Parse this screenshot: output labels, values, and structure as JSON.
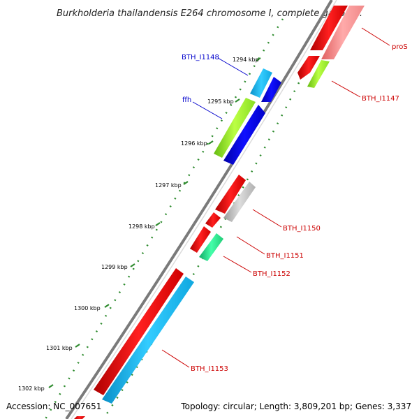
{
  "title": "Burkholderia thailandensis E264 chromosome I, complete genom...",
  "footer": {
    "accession": "Accession: NC_007651",
    "summary": "Topology: circular; Length: 3,809,201 bp; Genes: 3,337"
  },
  "ticks": [
    "1294 kbp",
    "1295 kbp",
    "1296 kbp",
    "1297 kbp",
    "1298 kbp",
    "1299 kbp",
    "1300 kbp",
    "1301 kbp",
    "1302 kbp"
  ],
  "genes": {
    "BTH_I1148": {
      "label": "BTH_I1148",
      "color": "#0000cc"
    },
    "ffh": {
      "label": "ffh",
      "color": "#0000cc"
    },
    "proS": {
      "label": "proS",
      "color": "#cc0000"
    },
    "BTH_I1147": {
      "label": "BTH_I1147",
      "color": "#cc0000"
    },
    "BTH_I1150": {
      "label": "BTH_I1150",
      "color": "#cc0000"
    },
    "BTH_I1151": {
      "label": "BTH_I1151",
      "color": "#cc0000"
    },
    "BTH_I1152": {
      "label": "BTH_I1152",
      "color": "#cc0000"
    },
    "BTH_I1153": {
      "label": "BTH_I1153",
      "color": "#cc0000"
    }
  },
  "colors": {
    "backbone": "#7a7a7a",
    "tick_dots": "#2e8b2e",
    "red": "#ff0000",
    "cyan": "#1ab8f0",
    "blue": "#0000ee",
    "green": "#99ee33",
    "grey": "#c8c8c8",
    "mint": "#22dd88",
    "pink": "#f08080"
  }
}
